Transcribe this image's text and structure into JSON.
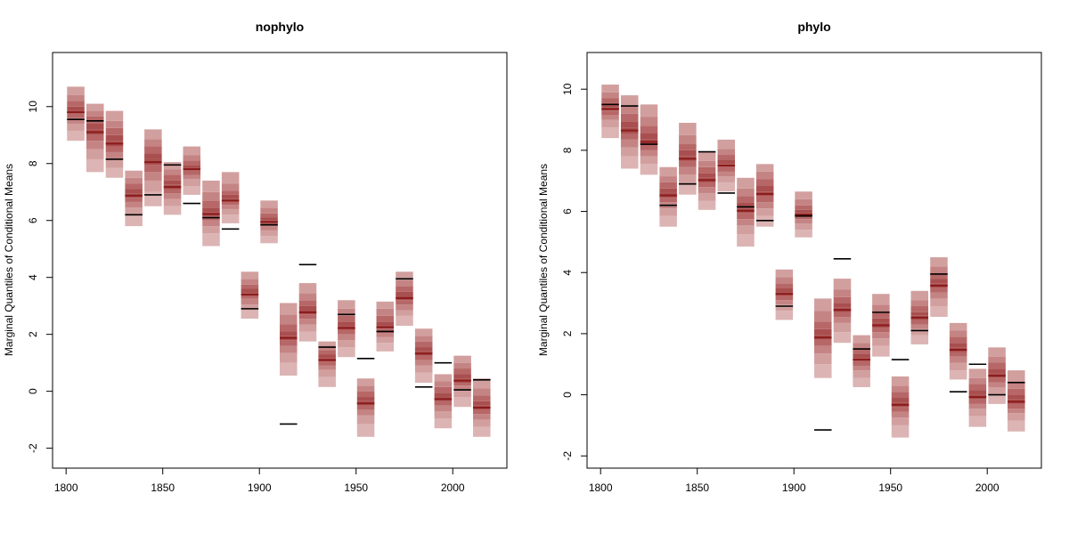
{
  "colors": {
    "band_1": "#dcb4b4",
    "band_2": "#d29f9f",
    "band_3": "#c58484",
    "band_4": "#b76767",
    "band_5": "#a94f4f",
    "median": "#8b1a1a",
    "observed": "#000000",
    "axis": "#000000"
  },
  "chart_data": [
    {
      "type": "box",
      "title": "nophylo",
      "xlabel": "",
      "ylabel": "Marginal Quantiles of Conditional Means",
      "xlim": [
        1793,
        2028
      ],
      "ylim": [
        -2.7,
        11.9
      ],
      "x_ticks": [
        1800,
        1850,
        1900,
        1950,
        2000
      ],
      "y_ticks": [
        -2,
        0,
        2,
        4,
        6,
        8,
        10
      ],
      "box_width_years": 9,
      "x": [
        1805,
        1815,
        1825,
        1835,
        1845,
        1855,
        1865,
        1875,
        1885,
        1895,
        1905,
        1915,
        1925,
        1935,
        1945,
        1955,
        1965,
        1975,
        1985,
        1995,
        2005,
        2015
      ],
      "quantile_levels": [
        0.05,
        0.15,
        0.25,
        0.35,
        0.45,
        0.55,
        0.65,
        0.75,
        0.85,
        0.95
      ],
      "quantiles": [
        [
          8.8,
          9.15,
          9.4,
          9.6,
          9.75,
          9.85,
          10.0,
          10.2,
          10.4,
          10.7
        ],
        [
          7.7,
          8.15,
          8.5,
          8.8,
          9.0,
          9.2,
          9.4,
          9.65,
          9.85,
          10.1
        ],
        [
          7.5,
          7.85,
          8.15,
          8.4,
          8.6,
          8.8,
          9.0,
          9.25,
          9.5,
          9.85
        ],
        [
          5.8,
          6.2,
          6.45,
          6.65,
          6.8,
          6.95,
          7.1,
          7.3,
          7.5,
          7.75
        ],
        [
          6.5,
          7.0,
          7.4,
          7.7,
          7.95,
          8.15,
          8.35,
          8.6,
          8.85,
          9.2
        ],
        [
          6.2,
          6.5,
          6.75,
          6.95,
          7.1,
          7.25,
          7.4,
          7.6,
          7.8,
          8.05
        ],
        [
          6.9,
          7.2,
          7.45,
          7.6,
          7.75,
          7.85,
          7.95,
          8.1,
          8.3,
          8.6
        ],
        [
          5.1,
          5.55,
          5.8,
          6.0,
          6.15,
          6.3,
          6.45,
          6.7,
          7.0,
          7.4
        ],
        [
          5.9,
          6.2,
          6.4,
          6.55,
          6.65,
          6.75,
          6.9,
          7.05,
          7.3,
          7.7
        ],
        [
          2.55,
          2.85,
          3.05,
          3.25,
          3.35,
          3.45,
          3.6,
          3.75,
          3.95,
          4.2
        ],
        [
          5.2,
          5.45,
          5.65,
          5.8,
          5.9,
          6.0,
          6.1,
          6.25,
          6.45,
          6.7
        ],
        [
          0.55,
          1.0,
          1.35,
          1.6,
          1.8,
          1.95,
          2.1,
          2.35,
          2.7,
          3.1
        ],
        [
          1.75,
          2.1,
          2.35,
          2.55,
          2.7,
          2.85,
          3.0,
          3.2,
          3.45,
          3.8
        ],
        [
          0.15,
          0.5,
          0.75,
          0.9,
          1.05,
          1.15,
          1.3,
          1.45,
          1.6,
          1.75
        ],
        [
          1.2,
          1.55,
          1.8,
          2.0,
          2.15,
          2.3,
          2.45,
          2.65,
          2.9,
          3.2
        ],
        [
          -1.6,
          -1.15,
          -0.85,
          -0.65,
          -0.5,
          -0.35,
          -0.2,
          0.0,
          0.2,
          0.45
        ],
        [
          1.4,
          1.7,
          1.9,
          2.05,
          2.2,
          2.3,
          2.45,
          2.65,
          2.9,
          3.15
        ],
        [
          2.3,
          2.65,
          2.85,
          3.05,
          3.2,
          3.35,
          3.5,
          3.7,
          3.9,
          4.2
        ],
        [
          0.3,
          0.65,
          0.9,
          1.1,
          1.25,
          1.4,
          1.55,
          1.75,
          1.95,
          2.2
        ],
        [
          -1.3,
          -0.95,
          -0.7,
          -0.5,
          -0.35,
          -0.2,
          -0.05,
          0.15,
          0.35,
          0.6
        ],
        [
          -0.55,
          -0.2,
          0.05,
          0.2,
          0.3,
          0.45,
          0.6,
          0.8,
          1.0,
          1.25
        ],
        [
          -1.6,
          -1.25,
          -1.0,
          -0.8,
          -0.65,
          -0.5,
          -0.35,
          -0.15,
          0.1,
          0.45
        ]
      ],
      "observed": [
        9.55,
        9.5,
        8.15,
        6.2,
        6.9,
        7.95,
        6.6,
        6.1,
        5.7,
        2.9,
        5.85,
        -1.15,
        4.45,
        1.55,
        2.7,
        1.15,
        2.1,
        3.95,
        0.15,
        1.0,
        0.05,
        0.4
      ]
    },
    {
      "type": "box",
      "title": "phylo",
      "xlabel": "",
      "ylabel": "Marginal Quantiles of Conditional Means",
      "xlim": [
        1793,
        2028
      ],
      "ylim": [
        -2.4,
        11.2
      ],
      "x_ticks": [
        1800,
        1850,
        1900,
        1950,
        2000
      ],
      "y_ticks": [
        -2,
        0,
        2,
        4,
        6,
        8,
        10
      ],
      "box_width_years": 9,
      "x": [
        1805,
        1815,
        1825,
        1835,
        1845,
        1855,
        1865,
        1875,
        1885,
        1895,
        1905,
        1915,
        1925,
        1935,
        1945,
        1955,
        1965,
        1975,
        1985,
        1995,
        2005,
        2015
      ],
      "quantile_levels": [
        0.05,
        0.15,
        0.25,
        0.35,
        0.45,
        0.55,
        0.65,
        0.75,
        0.85,
        0.95
      ],
      "quantiles": [
        [
          8.4,
          8.75,
          9.0,
          9.15,
          9.3,
          9.4,
          9.55,
          9.7,
          9.9,
          10.15
        ],
        [
          7.4,
          7.8,
          8.1,
          8.35,
          8.55,
          8.75,
          8.95,
          9.2,
          9.45,
          9.8
        ],
        [
          7.2,
          7.55,
          7.8,
          8.0,
          8.2,
          8.35,
          8.55,
          8.8,
          9.1,
          9.5
        ],
        [
          5.5,
          5.85,
          6.1,
          6.3,
          6.45,
          6.6,
          6.75,
          6.95,
          7.15,
          7.45
        ],
        [
          6.55,
          6.9,
          7.2,
          7.45,
          7.65,
          7.8,
          8.0,
          8.2,
          8.5,
          8.9
        ],
        [
          6.05,
          6.35,
          6.6,
          6.8,
          6.95,
          7.1,
          7.25,
          7.45,
          7.65,
          7.95
        ],
        [
          6.65,
          6.95,
          7.15,
          7.3,
          7.45,
          7.55,
          7.7,
          7.85,
          8.05,
          8.35
        ],
        [
          4.85,
          5.25,
          5.55,
          5.75,
          5.95,
          6.1,
          6.3,
          6.5,
          6.75,
          7.1
        ],
        [
          5.5,
          5.85,
          6.1,
          6.3,
          6.5,
          6.65,
          6.85,
          7.05,
          7.3,
          7.55
        ],
        [
          2.45,
          2.75,
          2.95,
          3.1,
          3.25,
          3.35,
          3.5,
          3.65,
          3.85,
          4.1
        ],
        [
          5.15,
          5.4,
          5.6,
          5.75,
          5.85,
          5.95,
          6.05,
          6.2,
          6.4,
          6.65
        ],
        [
          0.55,
          1.0,
          1.35,
          1.6,
          1.8,
          1.95,
          2.15,
          2.4,
          2.75,
          3.15
        ],
        [
          1.7,
          2.05,
          2.35,
          2.55,
          2.7,
          2.85,
          3.0,
          3.2,
          3.45,
          3.8
        ],
        [
          0.25,
          0.55,
          0.8,
          0.95,
          1.1,
          1.2,
          1.35,
          1.5,
          1.7,
          1.95
        ],
        [
          1.25,
          1.6,
          1.85,
          2.05,
          2.2,
          2.35,
          2.5,
          2.7,
          2.95,
          3.3
        ],
        [
          -1.4,
          -1.0,
          -0.75,
          -0.55,
          -0.4,
          -0.25,
          -0.1,
          0.1,
          0.3,
          0.6
        ],
        [
          1.65,
          1.95,
          2.15,
          2.3,
          2.45,
          2.6,
          2.7,
          2.9,
          3.1,
          3.4
        ],
        [
          2.55,
          2.9,
          3.15,
          3.35,
          3.5,
          3.65,
          3.8,
          4.0,
          4.2,
          4.5
        ],
        [
          0.5,
          0.8,
          1.05,
          1.25,
          1.4,
          1.55,
          1.7,
          1.9,
          2.1,
          2.35
        ],
        [
          -1.05,
          -0.7,
          -0.45,
          -0.3,
          -0.15,
          0.0,
          0.15,
          0.35,
          0.55,
          0.85
        ],
        [
          -0.3,
          0.0,
          0.25,
          0.4,
          0.55,
          0.7,
          0.85,
          1.05,
          1.25,
          1.55
        ],
        [
          -1.2,
          -0.85,
          -0.6,
          -0.45,
          -0.3,
          -0.15,
          0.0,
          0.2,
          0.45,
          0.8
        ]
      ],
      "observed": [
        9.5,
        9.45,
        8.2,
        6.2,
        6.9,
        7.95,
        6.6,
        6.15,
        5.7,
        2.9,
        5.85,
        -1.15,
        4.45,
        1.5,
        2.7,
        1.15,
        2.1,
        3.95,
        0.1,
        1.0,
        0.0,
        0.4
      ]
    }
  ]
}
